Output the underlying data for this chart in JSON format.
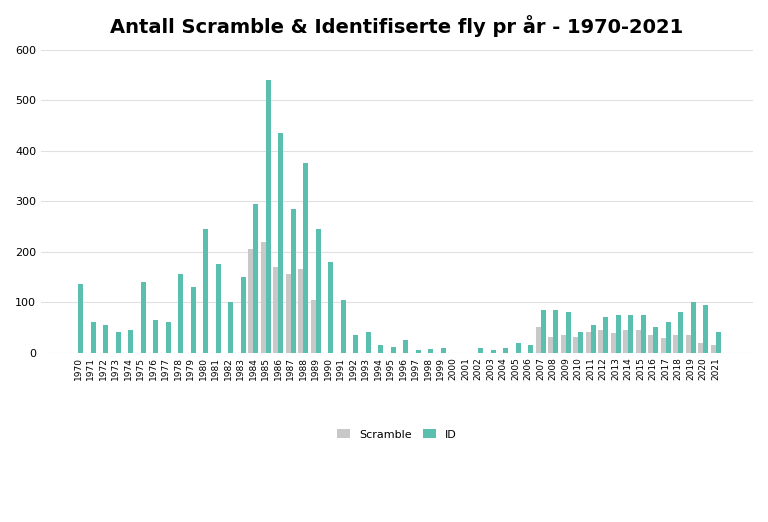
{
  "title": "Antall Scramble & Identifiserte fly pr år - 1970-2021",
  "years": [
    1970,
    1971,
    1972,
    1973,
    1974,
    1975,
    1976,
    1977,
    1978,
    1979,
    1980,
    1981,
    1982,
    1983,
    1984,
    1985,
    1986,
    1987,
    1988,
    1989,
    1990,
    1991,
    1992,
    1993,
    1994,
    1995,
    1996,
    1997,
    1998,
    1999,
    2000,
    2001,
    2002,
    2003,
    2004,
    2005,
    2006,
    2007,
    2008,
    2009,
    2010,
    2011,
    2012,
    2013,
    2014,
    2015,
    2016,
    2017,
    2018,
    2019,
    2020,
    2021
  ],
  "scramble": [
    0,
    0,
    0,
    0,
    0,
    0,
    0,
    0,
    0,
    0,
    0,
    0,
    0,
    0,
    205,
    220,
    170,
    155,
    165,
    105,
    0,
    0,
    0,
    0,
    0,
    0,
    0,
    0,
    0,
    0,
    0,
    0,
    0,
    0,
    0,
    0,
    0,
    50,
    30,
    35,
    30,
    40,
    45,
    38,
    45,
    45,
    35,
    28,
    35,
    35,
    20,
    15
  ],
  "id": [
    135,
    60,
    55,
    40,
    45,
    140,
    65,
    60,
    155,
    130,
    245,
    175,
    100,
    150,
    295,
    540,
    435,
    285,
    375,
    245,
    180,
    105,
    35,
    40,
    15,
    12,
    25,
    5,
    7,
    10,
    0,
    0,
    10,
    5,
    10,
    20,
    15,
    85,
    85,
    80,
    40,
    55,
    70,
    75,
    75,
    75,
    50,
    60,
    80,
    100,
    95,
    40
  ],
  "scramble_color": "#c8c8c8",
  "id_color": "#5bbfb0",
  "background_color": "#ffffff",
  "ylim": [
    0,
    600
  ],
  "yticks": [
    0,
    100,
    200,
    300,
    400,
    500,
    600
  ],
  "legend_labels": [
    "Scramble",
    "ID"
  ],
  "bar_width": 0.4,
  "title_fontsize": 14,
  "grid_color": "#e0e0e0"
}
